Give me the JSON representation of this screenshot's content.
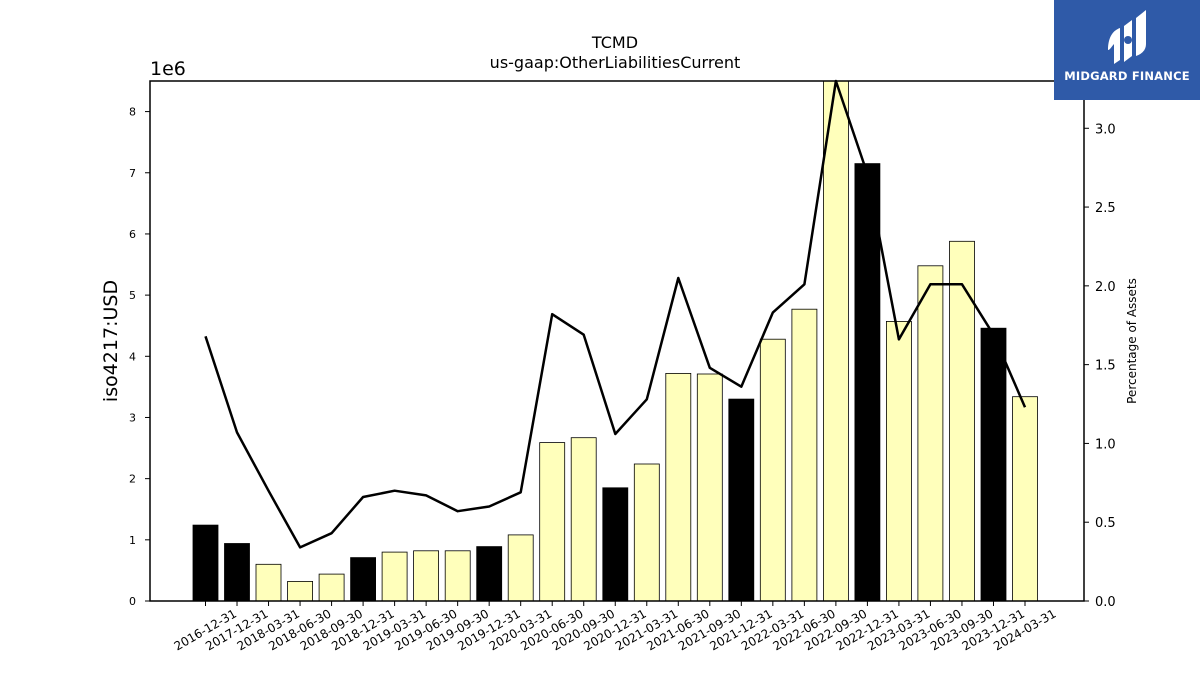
{
  "chart_data": {
    "type": "bar",
    "title": "TCMD",
    "subtitle": "us-gaap:OtherLiabilitiesCurrent",
    "ylabel": "iso4217:USD",
    "y_offset_label": "1e6",
    "y2label": "Percentage of Assets",
    "ylim": [
      0,
      8500000
    ],
    "y2lim": [
      0,
      3.3
    ],
    "yticks": [
      "0",
      "1",
      "2",
      "3",
      "4",
      "5",
      "6",
      "7",
      "8"
    ],
    "y2ticks": [
      "0.0",
      "0.5",
      "1.0",
      "1.5",
      "2.0",
      "2.5",
      "3.0"
    ],
    "categories": [
      "2016-12-31",
      "2017-12-31",
      "2018-03-31",
      "2018-06-30",
      "2018-09-30",
      "2018-12-31",
      "2019-03-31",
      "2019-06-30",
      "2019-09-30",
      "2019-12-31",
      "2020-03-31",
      "2020-06-30",
      "2020-09-30",
      "2020-12-31",
      "2021-03-31",
      "2021-06-30",
      "2021-09-30",
      "2021-12-31",
      "2022-03-31",
      "2022-06-30",
      "2022-09-30",
      "2022-12-31",
      "2023-03-31",
      "2023-06-30",
      "2023-09-30",
      "2023-12-31",
      "2024-03-31"
    ],
    "values": [
      1240000,
      940000,
      600000,
      320000,
      440000,
      710000,
      800000,
      820000,
      820000,
      890000,
      1080000,
      2590000,
      2670000,
      1850000,
      2240000,
      3720000,
      3710000,
      3300000,
      4280000,
      4770000,
      8520000,
      7150000,
      4570000,
      5480000,
      5880000,
      4460000,
      3340000
    ],
    "bar_colors": [
      "#000000",
      "#000000",
      "#ffffbb",
      "#ffffbb",
      "#ffffbb",
      "#000000",
      "#ffffbb",
      "#ffffbb",
      "#ffffbb",
      "#000000",
      "#ffffbb",
      "#ffffbb",
      "#ffffbb",
      "#000000",
      "#ffffbb",
      "#ffffbb",
      "#ffffbb",
      "#000000",
      "#ffffbb",
      "#ffffbb",
      "#ffffbb",
      "#000000",
      "#ffffbb",
      "#ffffbb",
      "#ffffbb",
      "#000000",
      "#ffffbb"
    ],
    "pct_of_assets": [
      1.68,
      1.07,
      0.7,
      0.34,
      0.43,
      0.66,
      0.7,
      0.67,
      0.57,
      0.6,
      0.69,
      1.82,
      1.69,
      1.06,
      1.28,
      2.05,
      1.48,
      1.36,
      1.83,
      2.01,
      3.3,
      2.71,
      1.66,
      2.01,
      2.01,
      1.69,
      1.23
    ]
  },
  "branding": {
    "logo_text": "MIDGARD FINANCE",
    "logo_bg": "#2f5aa8"
  }
}
